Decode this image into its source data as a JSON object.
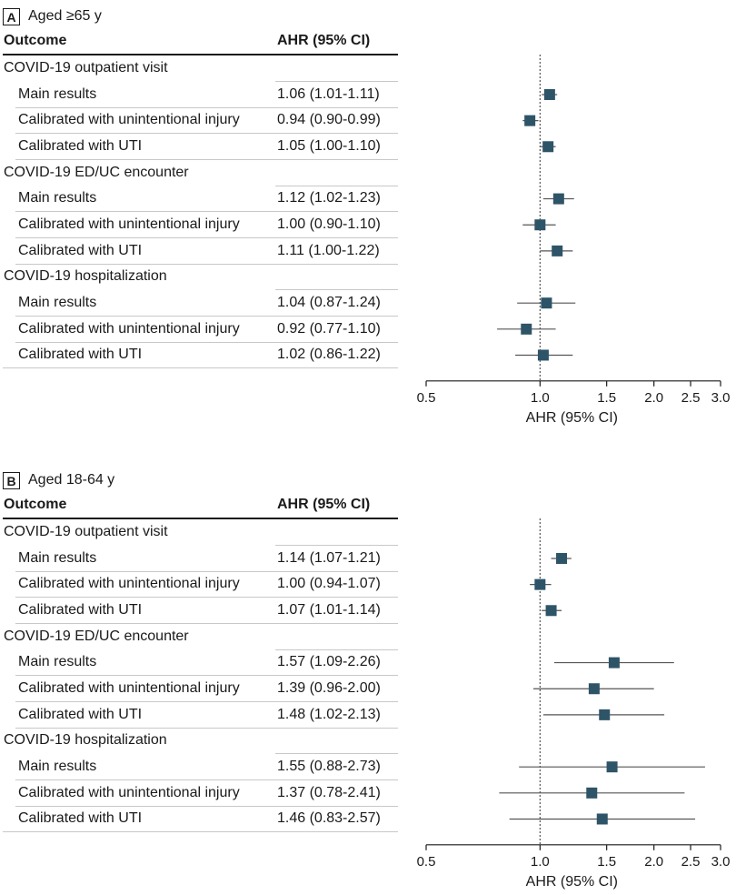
{
  "chart_data": [
    {
      "type": "forest",
      "panel_letter": "A",
      "title": "Aged ≥65 y",
      "columns": {
        "outcome": "Outcome",
        "ahr": "AHR (95% CI)"
      },
      "xlabel": "AHR (95% CI)",
      "x_scale": "log",
      "xlim": [
        0.5,
        3.0
      ],
      "xticks": [
        0.5,
        1.0,
        1.5,
        2.0,
        2.5,
        3.0
      ],
      "xtick_labels": [
        "0.5",
        "1.0",
        "1.5",
        "2.0",
        "2.5",
        "3.0"
      ],
      "reference_line": 1.0,
      "groups": [
        {
          "label": "COVID-19 outpatient visit",
          "rows": [
            {
              "label": "Main results",
              "ahr_text": "1.06 (1.01-1.11)",
              "est": 1.06,
              "lo": 1.01,
              "hi": 1.11
            },
            {
              "label": "Calibrated with unintentional injury",
              "ahr_text": "0.94 (0.90-0.99)",
              "est": 0.94,
              "lo": 0.9,
              "hi": 0.99
            },
            {
              "label": "Calibrated with UTI",
              "ahr_text": "1.05 (1.00-1.10)",
              "est": 1.05,
              "lo": 1.0,
              "hi": 1.1
            }
          ]
        },
        {
          "label": "COVID-19 ED/UC encounter",
          "rows": [
            {
              "label": "Main results",
              "ahr_text": "1.12 (1.02-1.23)",
              "est": 1.12,
              "lo": 1.02,
              "hi": 1.23
            },
            {
              "label": "Calibrated with unintentional injury",
              "ahr_text": "1.00 (0.90-1.10)",
              "est": 1.0,
              "lo": 0.9,
              "hi": 1.1
            },
            {
              "label": "Calibrated with UTI",
              "ahr_text": "1.11 (1.00-1.22)",
              "est": 1.11,
              "lo": 1.0,
              "hi": 1.22
            }
          ]
        },
        {
          "label": "COVID-19 hospitalization",
          "rows": [
            {
              "label": "Main results",
              "ahr_text": "1.04 (0.87-1.24)",
              "est": 1.04,
              "lo": 0.87,
              "hi": 1.24
            },
            {
              "label": "Calibrated with unintentional injury",
              "ahr_text": "0.92 (0.77-1.10)",
              "est": 0.92,
              "lo": 0.77,
              "hi": 1.1
            },
            {
              "label": "Calibrated with UTI",
              "ahr_text": "1.02 (0.86-1.22)",
              "est": 1.02,
              "lo": 0.86,
              "hi": 1.22
            }
          ]
        }
      ]
    },
    {
      "type": "forest",
      "panel_letter": "B",
      "title": "Aged 18-64 y",
      "columns": {
        "outcome": "Outcome",
        "ahr": "AHR (95% CI)"
      },
      "xlabel": "AHR (95% CI)",
      "x_scale": "log",
      "xlim": [
        0.5,
        3.0
      ],
      "xticks": [
        0.5,
        1.0,
        1.5,
        2.0,
        2.5,
        3.0
      ],
      "xtick_labels": [
        "0.5",
        "1.0",
        "1.5",
        "2.0",
        "2.5",
        "3.0"
      ],
      "reference_line": 1.0,
      "groups": [
        {
          "label": "COVID-19 outpatient visit",
          "rows": [
            {
              "label": "Main results",
              "ahr_text": "1.14 (1.07-1.21)",
              "est": 1.14,
              "lo": 1.07,
              "hi": 1.21
            },
            {
              "label": "Calibrated with unintentional injury",
              "ahr_text": "1.00 (0.94-1.07)",
              "est": 1.0,
              "lo": 0.94,
              "hi": 1.07
            },
            {
              "label": "Calibrated with UTI",
              "ahr_text": "1.07 (1.01-1.14)",
              "est": 1.07,
              "lo": 1.01,
              "hi": 1.14
            }
          ]
        },
        {
          "label": "COVID-19 ED/UC encounter",
          "rows": [
            {
              "label": "Main results",
              "ahr_text": "1.57 (1.09-2.26)",
              "est": 1.57,
              "lo": 1.09,
              "hi": 2.26
            },
            {
              "label": "Calibrated with unintentional injury",
              "ahr_text": "1.39 (0.96-2.00)",
              "est": 1.39,
              "lo": 0.96,
              "hi": 2.0
            },
            {
              "label": "Calibrated with UTI",
              "ahr_text": "1.48 (1.02-2.13)",
              "est": 1.48,
              "lo": 1.02,
              "hi": 2.13
            }
          ]
        },
        {
          "label": "COVID-19 hospitalization",
          "rows": [
            {
              "label": "Main results",
              "ahr_text": "1.55 (0.88-2.73)",
              "est": 1.55,
              "lo": 0.88,
              "hi": 2.73
            },
            {
              "label": "Calibrated with unintentional injury",
              "ahr_text": "1.37 (0.78-2.41)",
              "est": 1.37,
              "lo": 0.78,
              "hi": 2.41
            },
            {
              "label": "Calibrated with UTI",
              "ahr_text": "1.46 (0.83-2.57)",
              "est": 1.46,
              "lo": 0.83,
              "hi": 2.57
            }
          ]
        }
      ]
    }
  ],
  "colors": {
    "marker": "#2e5468",
    "ci_line": "#555555",
    "ref_line": "#555555",
    "axis": "#1a1a1a",
    "row_rule": "#c8c8c8"
  }
}
